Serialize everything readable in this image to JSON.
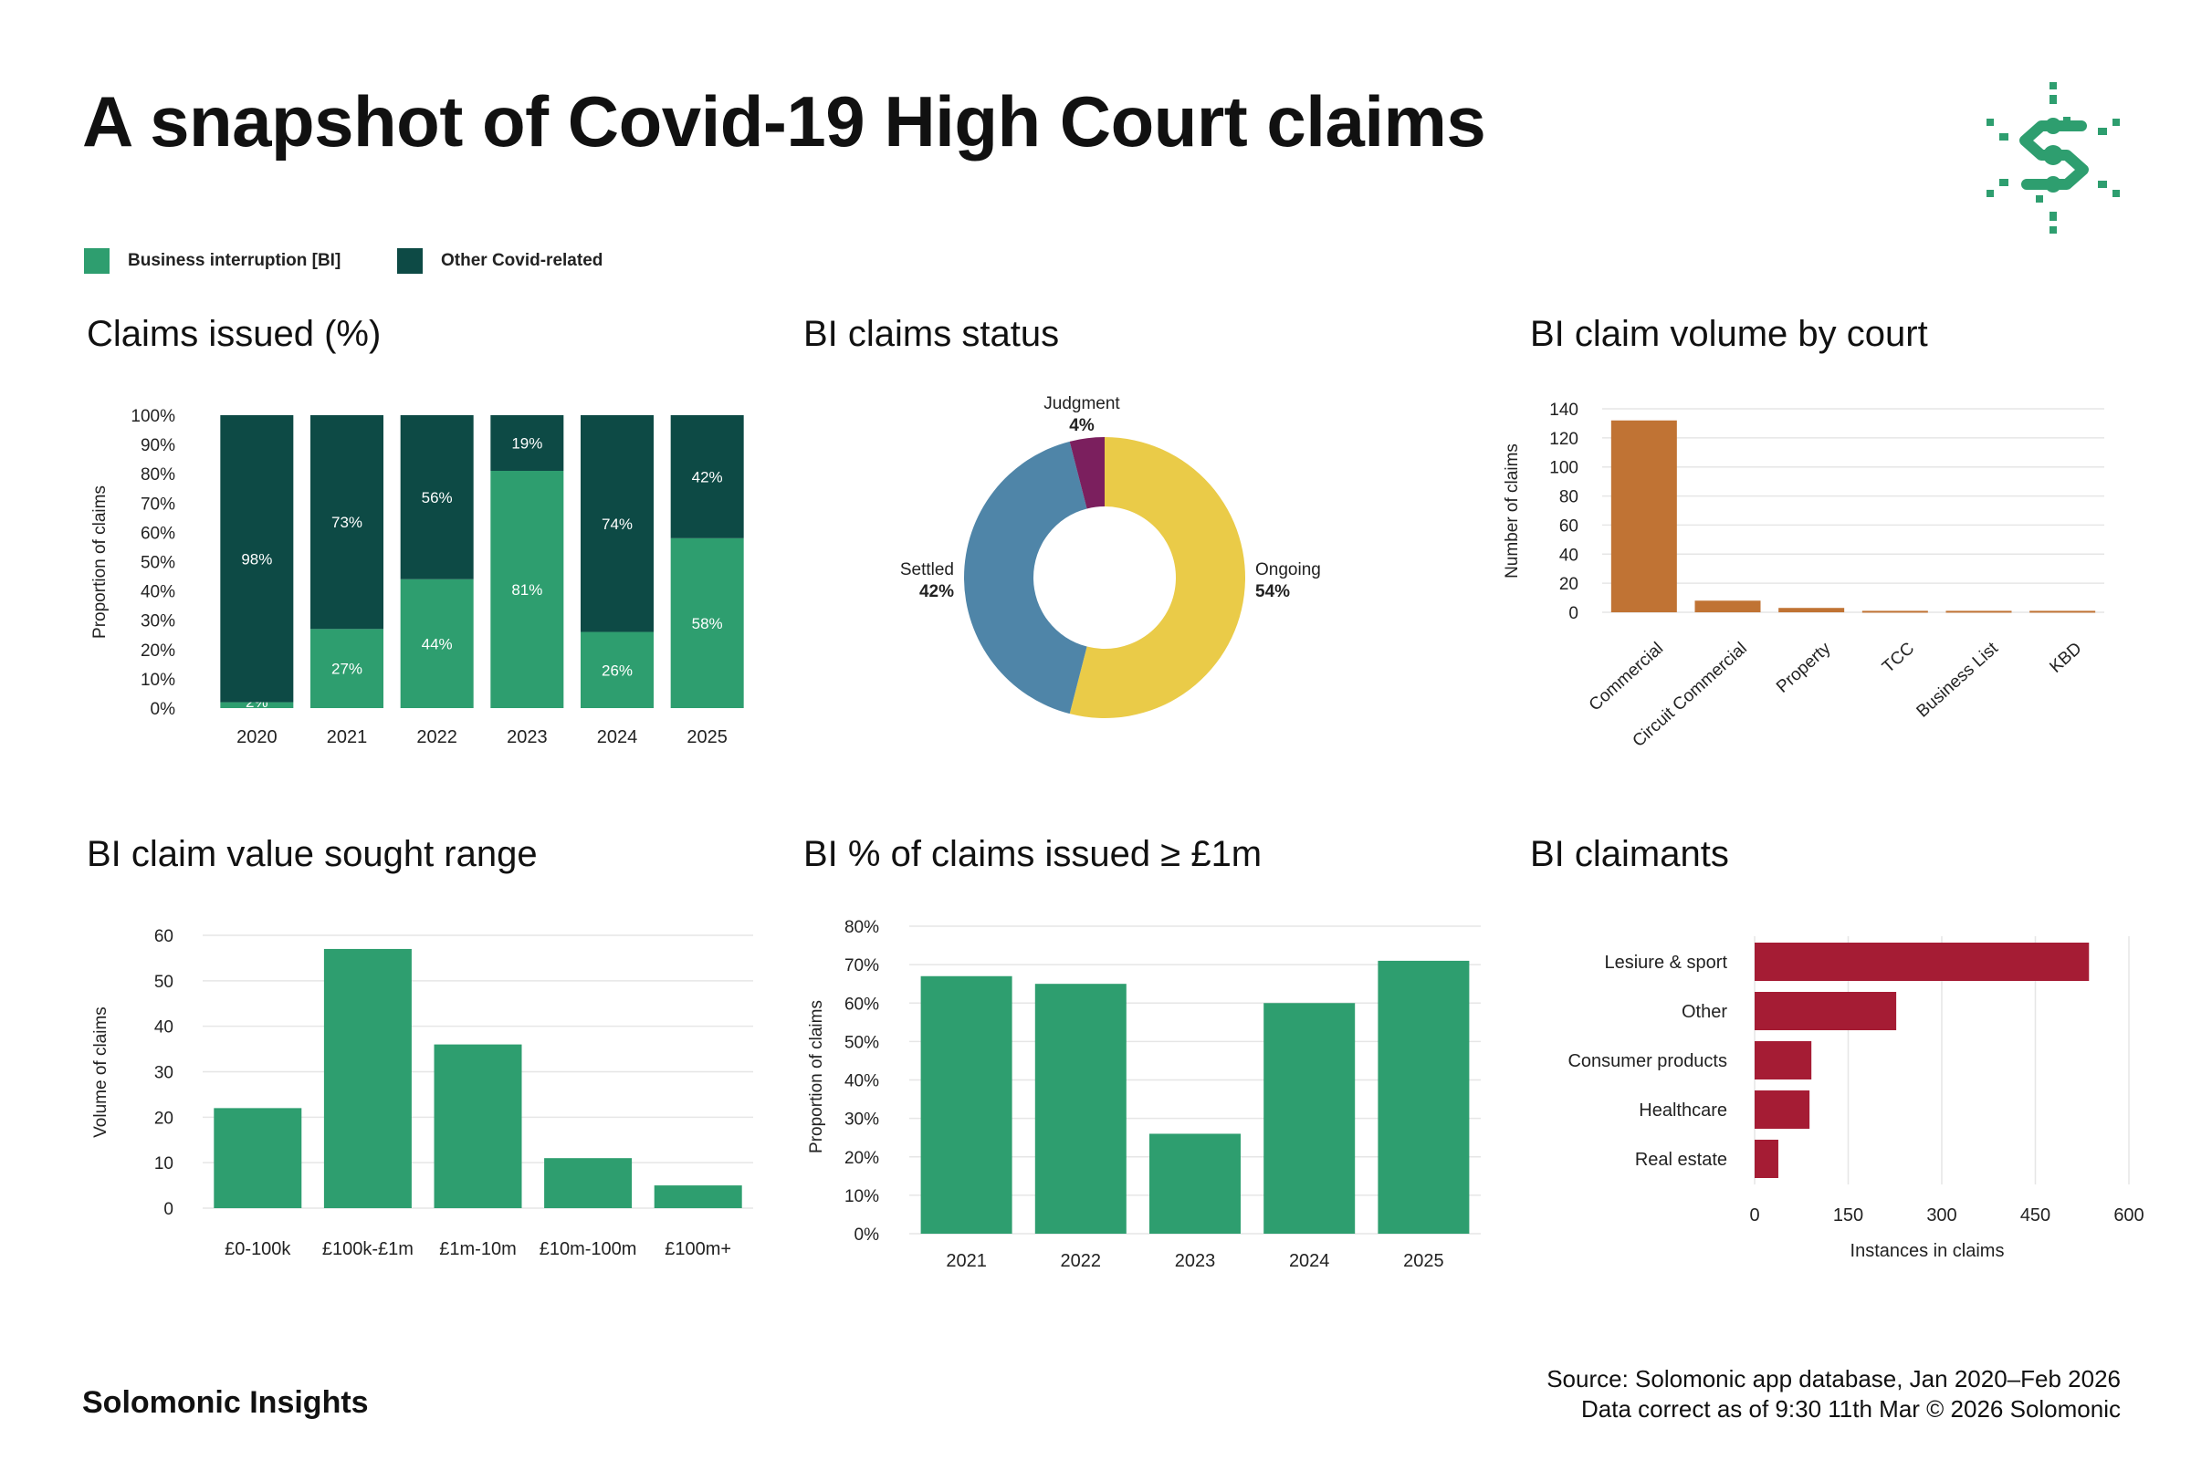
{
  "header": {
    "title": "A snapshot of Covid-19 High Court claims"
  },
  "legend": [
    {
      "label": "Business interruption [BI]",
      "color": "#2e9e6f"
    },
    {
      "label": "Other Covid-related",
      "color": "#0d4a45"
    }
  ],
  "colors": {
    "bi": "#2e9e6f",
    "other": "#0d4a45",
    "court": "#c07334",
    "claimants": "#a51c34",
    "ongoing": "#eacb48",
    "settled": "#4f85a8",
    "judgment": "#7b1f5e",
    "logo": "#2e9e6f"
  },
  "logo": {
    "icon": "solomonic-logo-icon"
  },
  "chart_data": [
    {
      "id": "claims_issued",
      "type": "bar",
      "stacked": true,
      "title": "Claims issued (%)",
      "ylabel": "Proportion of claims",
      "xlabel": "",
      "categories": [
        "2020",
        "2021",
        "2022",
        "2023",
        "2024",
        "2025"
      ],
      "series": [
        {
          "name": "Business interruption [BI]",
          "values": [
            2,
            27,
            44,
            81,
            26,
            58
          ],
          "labels": [
            "2%",
            "27%",
            "44%",
            "81%",
            "26%",
            "58%"
          ]
        },
        {
          "name": "Other Covid-related",
          "values": [
            98,
            73,
            56,
            19,
            74,
            42
          ],
          "labels": [
            "98%",
            "73%",
            "56%",
            "19%",
            "74%",
            "42%"
          ]
        }
      ],
      "ylim": [
        0,
        100
      ],
      "yticks": [
        "0%",
        "10%",
        "20%",
        "30%",
        "40%",
        "50%",
        "60%",
        "70%",
        "80%",
        "90%",
        "100%"
      ]
    },
    {
      "id": "bi_status",
      "type": "pie",
      "title": "BI claims status",
      "donut": true,
      "slices": [
        {
          "label": "Ongoing",
          "value": 54,
          "pct": "54%"
        },
        {
          "label": "Settled",
          "value": 42,
          "pct": "42%"
        },
        {
          "label": "Judgment",
          "value": 4,
          "pct": "4%"
        }
      ]
    },
    {
      "id": "court_volume",
      "type": "bar",
      "title": "BI claim volume by court",
      "ylabel": "Number of claims",
      "xlabel": "",
      "categories": [
        "Commercial",
        "Circuit Commercial",
        "Property",
        "TCC",
        "Business List",
        "KBD"
      ],
      "values": [
        132,
        8,
        3,
        1,
        1,
        1
      ],
      "ylim": [
        0,
        140
      ],
      "yticks": [
        "0",
        "20",
        "40",
        "60",
        "80",
        "100",
        "120",
        "140"
      ]
    },
    {
      "id": "value_range",
      "type": "bar",
      "title": "BI claim value sought range",
      "ylabel": "Volume of claims",
      "xlabel": "",
      "categories": [
        "£0-100k",
        "£100k-£1m",
        "£1m-10m",
        "£10m-100m",
        "£100m+"
      ],
      "values": [
        22,
        57,
        36,
        11,
        5
      ],
      "ylim": [
        0,
        60
      ],
      "yticks": [
        "0",
        "10",
        "20",
        "30",
        "40",
        "50",
        "60"
      ]
    },
    {
      "id": "over_1m",
      "type": "bar",
      "title": "BI % of claims issued ≥ £1m",
      "ylabel": "Proportion of claims",
      "xlabel": "",
      "categories": [
        "2021",
        "2022",
        "2023",
        "2024",
        "2025"
      ],
      "values": [
        67,
        65,
        26,
        60,
        71
      ],
      "ylim": [
        0,
        80
      ],
      "yticks": [
        "0%",
        "10%",
        "20%",
        "30%",
        "40%",
        "50%",
        "60%",
        "70%",
        "80%"
      ]
    },
    {
      "id": "claimants",
      "type": "bar",
      "orientation": "horizontal",
      "title": "BI claimants",
      "xlabel": "Instances in claims",
      "ylabel": "",
      "categories": [
        "Lesiure & sport",
        "Other",
        "Consumer products",
        "Healthcare",
        "Real estate"
      ],
      "values": [
        536,
        227,
        91,
        88,
        38
      ],
      "xlim": [
        0,
        600
      ],
      "xticks": [
        "0",
        "150",
        "300",
        "450",
        "600"
      ]
    }
  ],
  "footer": {
    "brand": "Solomonic Insights",
    "source": "Source: Solomonic app database, Jan 2020–Feb 2026",
    "correct": "Data correct as of 9:30 11th Mar © 2026 Solomonic"
  }
}
